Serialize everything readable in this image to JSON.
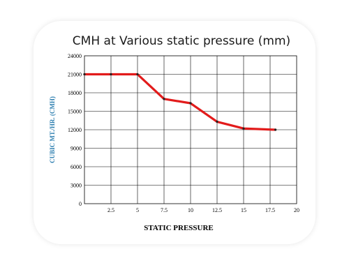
{
  "chart_data": {
    "type": "line",
    "title": "CMH at Various static pressure (mm)",
    "xlabel": "STATIC PRESSURE",
    "ylabel": "CUBIC MT./HR. (CMH)",
    "xlim": [
      0,
      20
    ],
    "ylim": [
      0,
      24000
    ],
    "x_ticks": [
      0,
      2.5,
      5,
      7.5,
      10,
      12.5,
      15,
      17.5,
      20
    ],
    "x_tick_labels": [
      "0",
      "2.5",
      "5",
      "7.5",
      "10",
      "12.5",
      "15",
      "17.5",
      "20"
    ],
    "y_ticks": [
      0,
      3000,
      6000,
      9000,
      12000,
      15000,
      18000,
      21000,
      24000
    ],
    "y_tick_labels": [
      "0",
      "3000",
      "6000",
      "9000",
      "12000",
      "15000",
      "18000",
      "21000",
      "24000"
    ],
    "grid": true,
    "series": [
      {
        "x": [
          0,
          2.5,
          5,
          7.5,
          10,
          12.5,
          15,
          18
        ],
        "y": [
          21000,
          21000,
          21000,
          17000,
          16300,
          13300,
          12200,
          12000
        ],
        "color": "#e21b1b"
      }
    ],
    "colors": {
      "line": "#e21b1b",
      "marker": "#222222",
      "ylabel": "#2e7fb0",
      "grid": "#000000"
    }
  }
}
